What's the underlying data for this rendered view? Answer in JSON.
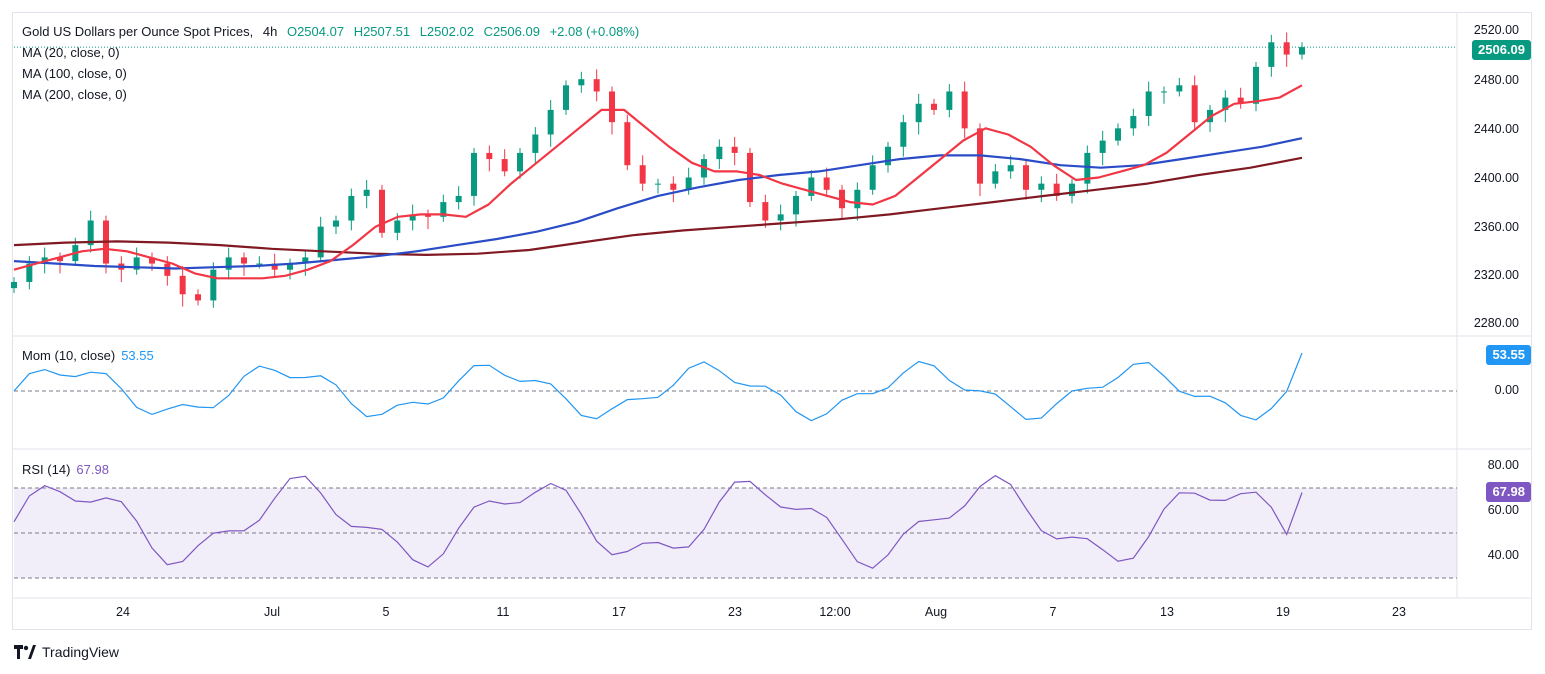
{
  "header": {
    "symbol": "Gold US Dollars per Ounce Spot Prices",
    "timeframe": "4h",
    "open": "O2504.07",
    "high": "H2507.51",
    "low": "L2502.02",
    "close": "C2506.09",
    "change": "+2.08 (+0.08%)",
    "ma_labels": [
      "MA (20, close, 0)",
      "MA (100, close, 0)",
      "MA (200, close, 0)"
    ]
  },
  "price_axis": {
    "ticks": [
      "2520.00",
      "2480.00",
      "2440.00",
      "2400.00",
      "2360.00",
      "2320.00",
      "2280.00"
    ],
    "last_price": "2506.09"
  },
  "momentum": {
    "label": "Mom (10, close)",
    "value": "53.55",
    "zero_tick": "0.00"
  },
  "rsi": {
    "label": "RSI (14)",
    "value": "67.98",
    "ticks": [
      "80.00",
      "60.00",
      "40.00"
    ]
  },
  "time_axis": [
    "24",
    "Jul",
    "5",
    "11",
    "17",
    "23",
    "12:00",
    "Aug",
    "7",
    "13",
    "19",
    "23"
  ],
  "branding": {
    "name": "TradingView",
    "icon": "tradingview-logo-icon"
  },
  "colors": {
    "up": "#089981",
    "down": "#f23645",
    "ma20": "#f23645",
    "ma100": "#2a4cc7",
    "ma200": "#801922",
    "momentum": "#2196f3",
    "rsi": "#7e57c2",
    "rsi_band": "#7e57c2"
  },
  "chart_data": {
    "type": "candlestick",
    "title": "Gold US Dollars per Ounce Spot Prices, 4h",
    "ylim": [
      2280,
      2520
    ],
    "series": [
      {
        "name": "Price close",
        "values": [
          2315,
          2330,
          2335,
          2332,
          2345,
          2365,
          2330,
          2325,
          2335,
          2330,
          2320,
          2305,
          2300,
          2325,
          2335,
          2330,
          2330,
          2325,
          2330,
          2335,
          2360,
          2365,
          2385,
          2390,
          2355,
          2365,
          2370,
          2368,
          2380,
          2385,
          2420,
          2415,
          2405,
          2420,
          2435,
          2455,
          2475,
          2480,
          2470,
          2445,
          2410,
          2395,
          2395,
          2390,
          2400,
          2415,
          2425,
          2420,
          2380,
          2365,
          2370,
          2385,
          2400,
          2390,
          2375,
          2390,
          2410,
          2425,
          2445,
          2460,
          2455,
          2470,
          2440,
          2395,
          2405,
          2410,
          2390,
          2395,
          2385,
          2395,
          2420,
          2430,
          2440,
          2450,
          2470,
          2470,
          2475,
          2445,
          2455,
          2465,
          2460,
          2490,
          2510,
          2500,
          2506.09
        ]
      },
      {
        "name": "MA (20, close, 0)",
        "values": [
          2325,
          2330,
          2335,
          2340,
          2342,
          2340,
          2335,
          2330,
          2322,
          2318,
          2318,
          2318,
          2320,
          2325,
          2332,
          2345,
          2360,
          2368,
          2370,
          2370,
          2368,
          2378,
          2395,
          2410,
          2425,
          2440,
          2455,
          2455,
          2440,
          2425,
          2412,
          2405,
          2405,
          2402,
          2395,
          2390,
          2385,
          2380,
          2378,
          2385,
          2400,
          2415,
          2430,
          2440,
          2435,
          2425,
          2410,
          2398,
          2400,
          2405,
          2410,
          2420,
          2435,
          2450,
          2460,
          2462,
          2465,
          2475
        ]
      },
      {
        "name": "MA (100, close, 0)",
        "values": [
          2332,
          2330,
          2328,
          2327,
          2326,
          2327,
          2328,
          2330,
          2333,
          2336,
          2340,
          2345,
          2350,
          2356,
          2364,
          2375,
          2385,
          2392,
          2398,
          2402,
          2405,
          2410,
          2415,
          2418,
          2418,
          2415,
          2410,
          2408,
          2410,
          2415,
          2420,
          2425,
          2432
        ]
      },
      {
        "name": "MA (200, close, 0)",
        "values": [
          2345,
          2347,
          2348,
          2347,
          2345,
          2342,
          2340,
          2338,
          2337,
          2338,
          2341,
          2347,
          2353,
          2357,
          2360,
          2363,
          2366,
          2370,
          2375,
          2380,
          2385,
          2390,
          2395,
          2402,
          2408,
          2416
        ]
      },
      {
        "name": "Mom (10, close)",
        "last": 53.55
      },
      {
        "name": "RSI (14)",
        "last": 67.98,
        "bands": [
          70,
          50,
          30
        ]
      }
    ]
  }
}
